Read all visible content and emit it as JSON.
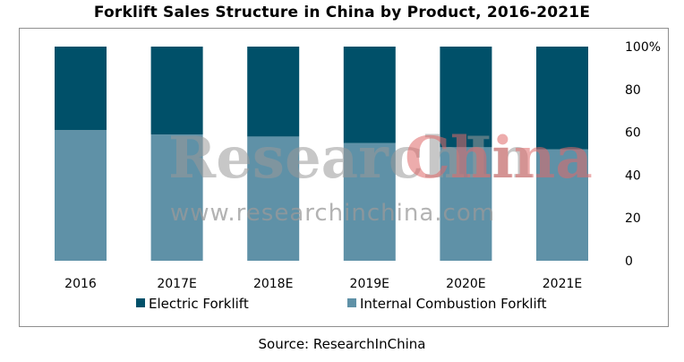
{
  "title": "Forklift Sales Structure in China by Product, 2016-2021E",
  "source": "Source: ResearchInChina",
  "watermark": {
    "brand_main": "ResearchIn",
    "brand_accent": "China",
    "url": "www.researchinchina.com"
  },
  "chart_data": {
    "type": "bar",
    "stacked": true,
    "percent_stacked": true,
    "categories": [
      "2016",
      "2017E",
      "2018E",
      "2019E",
      "2020E",
      "2021E"
    ],
    "series": [
      {
        "name": "Electric Forklift",
        "color": "#005069",
        "values": [
          39,
          41,
          42,
          45,
          47,
          48
        ]
      },
      {
        "name": "Internal Combustion Forklift",
        "color": "#5f91a7",
        "values": [
          61,
          59,
          58,
          55,
          53,
          52
        ]
      }
    ],
    "y_axis_position": "right",
    "ylim": [
      0,
      100
    ],
    "yticks": [
      0,
      20,
      40,
      60,
      80,
      100
    ],
    "ytick_labels": [
      "0",
      "20",
      "40",
      "60",
      "80",
      "100%"
    ],
    "grid": false,
    "legend_placement": "bottom"
  }
}
